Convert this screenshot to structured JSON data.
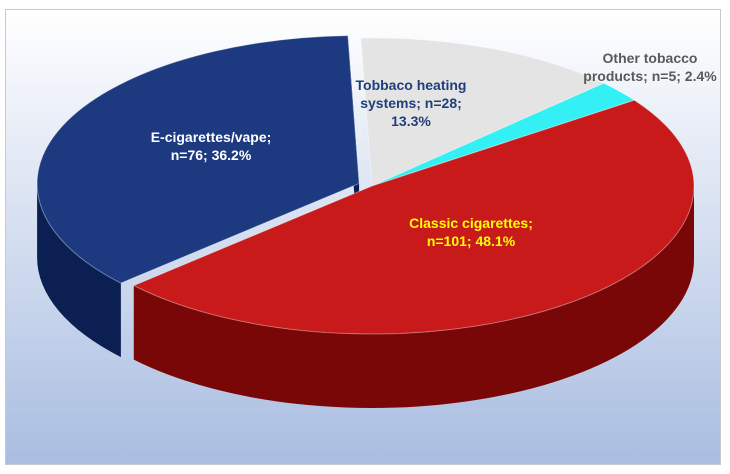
{
  "chart_data": {
    "type": "pie",
    "title": "",
    "slices": [
      {
        "label": "Tobbaco heating systems",
        "n": 28,
        "percent": 13.3,
        "label_lines": [
          "Tobbaco heating",
          "systems; n=28;",
          "13.3%"
        ],
        "color": "#e4e4e4",
        "side": "#a9a9a9",
        "label_color": "#1f3f7a"
      },
      {
        "label": "Other tobacco products",
        "n": 5,
        "percent": 2.4,
        "label_lines": [
          "Other tobacco",
          "products; n=5; 2.4%"
        ],
        "color": "#33f0f4",
        "side": "#15a9ae",
        "label_color": "#595959"
      },
      {
        "label": "Classic cigarettes",
        "n": 101,
        "percent": 48.1,
        "label_lines": [
          "Classic cigarettes;",
          "n=101; 48.1%"
        ],
        "color": "#c81a1a",
        "side": "#7a0707",
        "label_color": "#ffff00"
      },
      {
        "label": "E-cigarettes/vape",
        "n": 76,
        "percent": 36.2,
        "label_lines": [
          "E-cigarettes/vape;",
          "n=76; 36.2%"
        ],
        "color": "#1d3a80",
        "side": "#0b1f52",
        "label_color": "#ffffff"
      }
    ],
    "exploded": [
      "E-cigarettes/vape"
    ],
    "style": "3d-pie",
    "background": [
      "#ffffff",
      "#a9bde1"
    ]
  }
}
